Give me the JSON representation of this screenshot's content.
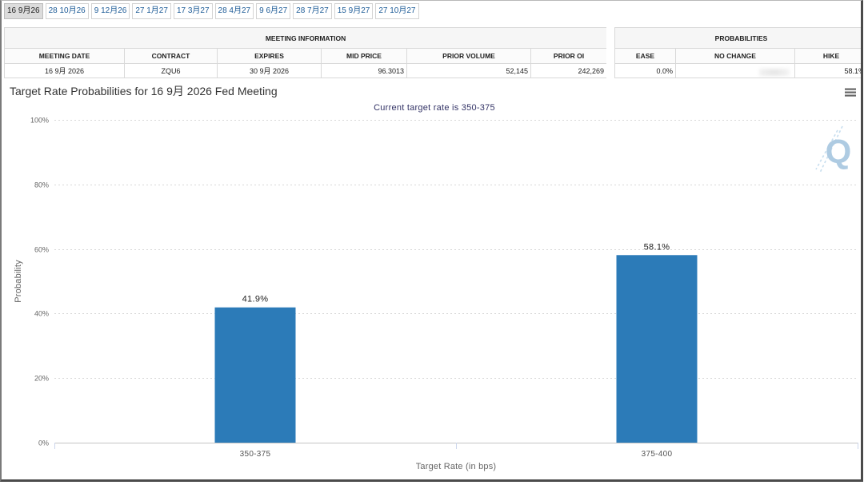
{
  "tabs": [
    {
      "label": "16 9月26",
      "selected": true
    },
    {
      "label": "28 10月26"
    },
    {
      "label": "9 12月26"
    },
    {
      "label": "27 1月27"
    },
    {
      "label": "17 3月27"
    },
    {
      "label": "28 4月27"
    },
    {
      "label": "9 6月27"
    },
    {
      "label": "28 7月27"
    },
    {
      "label": "15 9月27"
    },
    {
      "label": "27 10月27"
    }
  ],
  "meeting_info": {
    "heading": "MEETING INFORMATION",
    "columns": [
      "MEETING DATE",
      "CONTRACT",
      "EXPIRES",
      "MID PRICE",
      "PRIOR VOLUME",
      "PRIOR OI"
    ],
    "row": [
      "16 9月 2026",
      "ZQU6",
      "30 9月 2026",
      "96.3013",
      "52,145",
      "242,269"
    ]
  },
  "probabilities": {
    "heading": "PROBABILITIES",
    "columns": [
      "EASE",
      "NO CHANGE",
      "HIKE"
    ],
    "ease": "0.0%",
    "hike": "58.1%"
  },
  "icons": {
    "chart_menu": "hamburger-menu-icon",
    "watermark": "logo-watermark"
  },
  "watermark": {
    "text": "Q"
  },
  "colors": {
    "bar": "#2c7bb8",
    "tab_link": "#1d5b97",
    "subtitle": "#333366",
    "watermark": "#aecbe2"
  },
  "chart_data": {
    "type": "bar",
    "title": "Target Rate Probabilities for 16 9月 2026 Fed Meeting",
    "subtitle": "Current target rate is 350-375",
    "xlabel": "Target Rate (in bps)",
    "ylabel": "Probability",
    "categories": [
      "350-375",
      "375-400"
    ],
    "values": [
      41.9,
      58.1
    ],
    "data_labels": [
      "41.9%",
      "58.1%"
    ],
    "yticks": [
      0,
      20,
      40,
      60,
      80,
      100
    ],
    "ytick_labels": [
      "0%",
      "20%",
      "40%",
      "60%",
      "80%",
      "100%"
    ],
    "ylim": [
      0,
      100
    ],
    "grid": true
  }
}
